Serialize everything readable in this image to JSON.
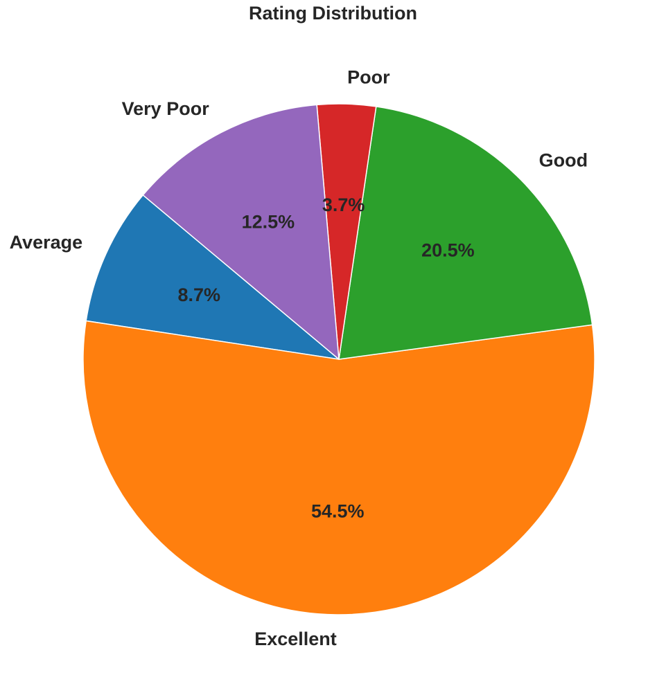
{
  "chart_data": {
    "type": "pie",
    "title": "Rating Distribution",
    "categories": [
      "Average",
      "Excellent",
      "Good",
      "Poor",
      "Very Poor"
    ],
    "values": [
      8.7,
      54.5,
      20.5,
      3.7,
      12.5
    ],
    "percent_labels": [
      "8.7%",
      "54.5%",
      "20.5%",
      "3.7%",
      "12.5%"
    ],
    "colors": [
      "#1f77b4",
      "#ff7f0e",
      "#2ca02c",
      "#d62728",
      "#9467bd"
    ],
    "start_angle_deg": 140,
    "direction": "counterclockwise",
    "legend": "none"
  }
}
